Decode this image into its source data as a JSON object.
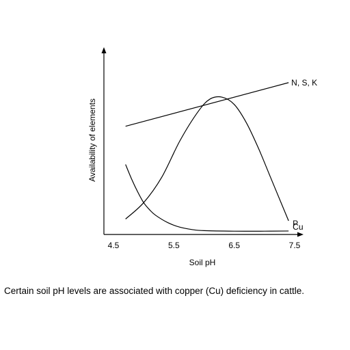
{
  "chart_data": {
    "type": "line",
    "xlabel": "Soil pH",
    "ylabel": "Availability of elements",
    "x_ticks": [
      "4.5",
      "5.5",
      "6.5",
      "7.5"
    ],
    "xlim": [
      4.5,
      7.5
    ],
    "grid": false,
    "legend": "curve labels at right end of each line",
    "series": [
      {
        "name": "N, S, K",
        "x": [
          4.7,
          7.4
        ],
        "y": [
          0.58,
          0.82
        ]
      },
      {
        "name": "P",
        "x": [
          4.7,
          5.0,
          5.3,
          5.6,
          5.9,
          6.1,
          6.3,
          6.5,
          6.7,
          6.9,
          7.1,
          7.3,
          7.4
        ],
        "y": [
          0.07,
          0.16,
          0.3,
          0.5,
          0.66,
          0.73,
          0.74,
          0.7,
          0.6,
          0.46,
          0.3,
          0.14,
          0.06
        ]
      },
      {
        "name": "Cu",
        "x": [
          4.7,
          4.8,
          4.9,
          5.0,
          5.1,
          5.2,
          5.4,
          5.6,
          5.8,
          6.0,
          6.5,
          7.0,
          7.4
        ],
        "y": [
          0.37,
          0.29,
          0.22,
          0.16,
          0.12,
          0.09,
          0.05,
          0.025,
          0.012,
          0.006,
          0.003,
          0.003,
          0.004
        ]
      }
    ]
  },
  "caption": "Certain soil pH levels are associated with copper (Cu) deficiency in cattle."
}
